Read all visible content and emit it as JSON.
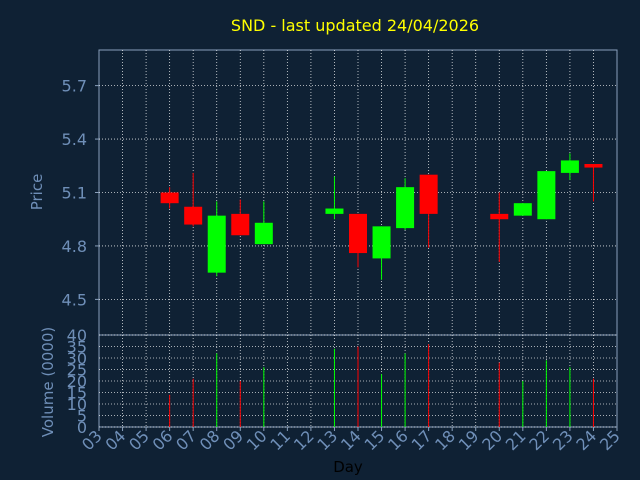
{
  "chart_data": {
    "type": "candlestick",
    "title": "SND - last updated 24/04/2026",
    "xlabel": "Day",
    "price_panel": {
      "ylabel": "Price",
      "ylim": [
        4.3,
        5.9
      ],
      "yticks": [
        "4.5",
        "4.8",
        "5.1",
        "5.4",
        "5.7"
      ],
      "grid": true
    },
    "volume_panel": {
      "ylabel": "Volume (0000)",
      "ylim": [
        0,
        40
      ],
      "yticks": [
        "0",
        "5",
        "10",
        "15",
        "20",
        "25",
        "30",
        "35",
        "40"
      ],
      "grid": true
    },
    "x_ticks": [
      "03",
      "04",
      "05",
      "06",
      "07",
      "08",
      "09",
      "10",
      "11",
      "12",
      "13",
      "14",
      "15",
      "16",
      "17",
      "18",
      "19",
      "20",
      "21",
      "22",
      "23",
      "24",
      "25"
    ],
    "colors": {
      "up": "#00ff00",
      "down": "#ff0000",
      "grid": "#ffffff",
      "text": "#6f8fb8",
      "title": "#ffff00",
      "background": "#0f2134"
    },
    "candles": [
      {
        "day": "06",
        "open": 5.1,
        "high": 5.13,
        "low": 5.01,
        "close": 5.04,
        "volume": 14
      },
      {
        "day": "07",
        "open": 5.02,
        "high": 5.21,
        "low": 4.91,
        "close": 4.92,
        "volume": 21
      },
      {
        "day": "08",
        "open": 4.65,
        "high": 5.05,
        "low": 4.63,
        "close": 4.97,
        "volume": 32
      },
      {
        "day": "09",
        "open": 4.98,
        "high": 5.06,
        "low": 4.86,
        "close": 4.86,
        "volume": 20
      },
      {
        "day": "10",
        "open": 4.81,
        "high": 5.05,
        "low": 4.81,
        "close": 4.93,
        "volume": 26
      },
      {
        "day": "13",
        "open": 4.98,
        "high": 5.19,
        "low": 4.95,
        "close": 5.01,
        "volume": 34
      },
      {
        "day": "14",
        "open": 4.98,
        "high": 4.98,
        "low": 4.68,
        "close": 4.76,
        "volume": 35
      },
      {
        "day": "15",
        "open": 4.73,
        "high": 4.91,
        "low": 4.61,
        "close": 4.91,
        "volume": 23
      },
      {
        "day": "16",
        "open": 4.9,
        "high": 5.18,
        "low": 4.89,
        "close": 5.13,
        "volume": 32
      },
      {
        "day": "17",
        "open": 5.2,
        "high": 5.2,
        "low": 4.79,
        "close": 4.98,
        "volume": 36
      },
      {
        "day": "20",
        "open": 4.98,
        "high": 5.1,
        "low": 4.71,
        "close": 4.95,
        "volume": 28
      },
      {
        "day": "21",
        "open": 4.97,
        "high": 5.04,
        "low": 4.97,
        "close": 5.04,
        "volume": 20
      },
      {
        "day": "22",
        "open": 4.95,
        "high": 5.22,
        "low": 4.95,
        "close": 5.22,
        "volume": 29
      },
      {
        "day": "23",
        "open": 5.21,
        "high": 5.32,
        "low": 5.17,
        "close": 5.28,
        "volume": 26
      },
      {
        "day": "24",
        "open": 5.26,
        "high": 5.26,
        "low": 5.05,
        "close": 5.24,
        "volume": 21
      }
    ]
  }
}
